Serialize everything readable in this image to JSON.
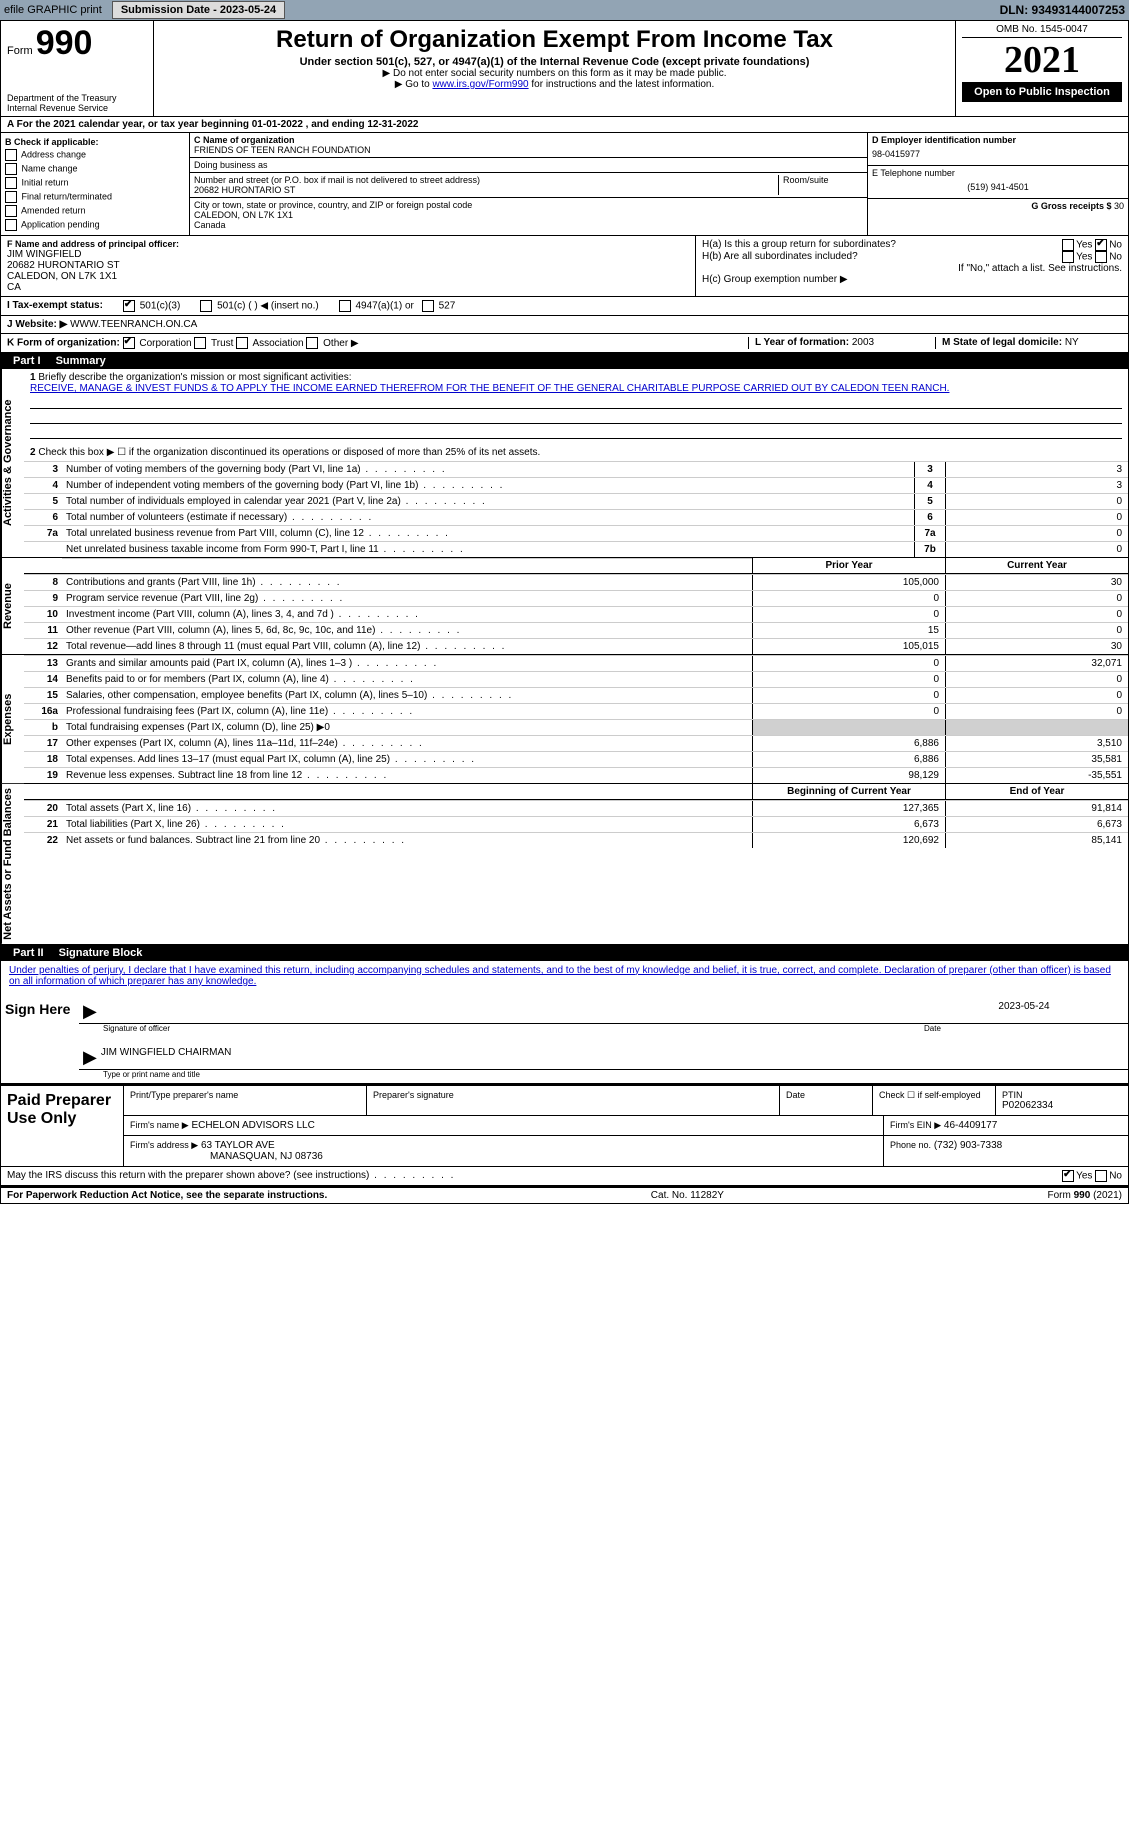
{
  "topbar": {
    "efile_label": "efile GRAPHIC print",
    "submission_label": "Submission Date - 2023-05-24",
    "dln": "DLN: 93493144007253"
  },
  "header": {
    "form_prefix": "Form",
    "form_number": "990",
    "title": "Return of Organization Exempt From Income Tax",
    "subtitle": "Under section 501(c), 527, or 4947(a)(1) of the Internal Revenue Code (except private foundations)",
    "note1": "▶ Do not enter social security numbers on this form as it may be made public.",
    "note2_pre": "▶ Go to ",
    "note2_link": "www.irs.gov/Form990",
    "note2_post": " for instructions and the latest information.",
    "dept": "Department of the Treasury",
    "irs": "Internal Revenue Service",
    "omb": "OMB No. 1545-0047",
    "tax_year": "2021",
    "open_public": "Open to Public Inspection"
  },
  "periodA": {
    "text_pre": "For the 2021 calendar year, or tax year beginning ",
    "begin": "01-01-2022",
    "mid": " , and ending ",
    "end": "12-31-2022"
  },
  "boxB": {
    "label": "B Check if applicable:",
    "items": [
      "Address change",
      "Name change",
      "Initial return",
      "Final return/terminated",
      "Amended return",
      "Application pending"
    ]
  },
  "boxC": {
    "name_label": "C Name of organization",
    "name": "FRIENDS OF TEEN RANCH FOUNDATION",
    "dba_label": "Doing business as",
    "dba": "",
    "street_label": "Number and street (or P.O. box if mail is not delivered to street address)",
    "room_label": "Room/suite",
    "street": "20682 HURONTARIO ST",
    "city_label": "City or town, state or province, country, and ZIP or foreign postal code",
    "city": "CALEDON, ON  L7K 1X1",
    "country": "Canada"
  },
  "boxD": {
    "label": "D Employer identification number",
    "value": "98-0415977"
  },
  "boxE": {
    "label": "E Telephone number",
    "value": "(519) 941-4501"
  },
  "boxG": {
    "label": "G Gross receipts $",
    "value": "30"
  },
  "boxF": {
    "label": "F  Name and address of principal officer:",
    "name": "JIM WINGFIELD",
    "addr1": "20682 HURONTARIO ST",
    "addr2": "CALEDON, ON  L7K 1X1",
    "addr3": "CA"
  },
  "boxH": {
    "a_label": "H(a)  Is this a group return for subordinates?",
    "b_label": "H(b)  Are all subordinates included?",
    "b_note": "If \"No,\" attach a list. See instructions.",
    "c_label": "H(c)  Group exemption number ▶",
    "yes": "Yes",
    "no": "No"
  },
  "boxI": {
    "label": "I    Tax-exempt status:",
    "opt1": "501(c)(3)",
    "opt2": "501(c) (  ) ◀ (insert no.)",
    "opt3": "4947(a)(1) or",
    "opt4": "527"
  },
  "boxJ": {
    "label": "J    Website: ▶",
    "value": "WWW.TEENRANCH.ON.CA"
  },
  "boxK": {
    "label": "K Form of organization:",
    "opts": [
      "Corporation",
      "Trust",
      "Association",
      "Other ▶"
    ]
  },
  "boxL": {
    "label": "L Year of formation:",
    "value": "2003"
  },
  "boxM": {
    "label": "M State of legal domicile:",
    "value": "NY"
  },
  "part1": {
    "label": "Part I",
    "title": "Summary",
    "line1_label": "Briefly describe the organization's mission or most significant activities:",
    "mission": "RECEIVE, MANAGE & INVEST FUNDS & TO APPLY THE INCOME EARNED THEREFROM FOR THE BENEFIT OF THE GENERAL CHARITABLE PURPOSE CARRIED OUT BY CALEDON TEEN RANCH.",
    "line2": "Check this box ▶ ☐  if the organization discontinued its operations or disposed of more than 25% of its net assets.",
    "gov_tab": "Activities & Governance",
    "rev_tab": "Revenue",
    "exp_tab": "Expenses",
    "net_tab": "Net Assets or Fund Balances",
    "rows_gov": [
      {
        "n": "3",
        "d": "Number of voting members of the governing body (Part VI, line 1a)",
        "box": "3",
        "v": "3"
      },
      {
        "n": "4",
        "d": "Number of independent voting members of the governing body (Part VI, line 1b)",
        "box": "4",
        "v": "3"
      },
      {
        "n": "5",
        "d": "Total number of individuals employed in calendar year 2021 (Part V, line 2a)",
        "box": "5",
        "v": "0"
      },
      {
        "n": "6",
        "d": "Total number of volunteers (estimate if necessary)",
        "box": "6",
        "v": "0"
      },
      {
        "n": "7a",
        "d": "Total unrelated business revenue from Part VIII, column (C), line 12",
        "box": "7a",
        "v": "0"
      },
      {
        "n": "",
        "d": "Net unrelated business taxable income from Form 990-T, Part I, line 11",
        "box": "7b",
        "v": "0"
      }
    ],
    "col_prior": "Prior Year",
    "col_current": "Current Year",
    "rows_rev": [
      {
        "n": "8",
        "d": "Contributions and grants (Part VIII, line 1h)",
        "p": "105,000",
        "c": "30"
      },
      {
        "n": "9",
        "d": "Program service revenue (Part VIII, line 2g)",
        "p": "0",
        "c": "0"
      },
      {
        "n": "10",
        "d": "Investment income (Part VIII, column (A), lines 3, 4, and 7d )",
        "p": "0",
        "c": "0"
      },
      {
        "n": "11",
        "d": "Other revenue (Part VIII, column (A), lines 5, 6d, 8c, 9c, 10c, and 11e)",
        "p": "15",
        "c": "0"
      },
      {
        "n": "12",
        "d": "Total revenue—add lines 8 through 11 (must equal Part VIII, column (A), line 12)",
        "p": "105,015",
        "c": "30"
      }
    ],
    "rows_exp": [
      {
        "n": "13",
        "d": "Grants and similar amounts paid (Part IX, column (A), lines 1–3 )",
        "p": "0",
        "c": "32,071"
      },
      {
        "n": "14",
        "d": "Benefits paid to or for members (Part IX, column (A), line 4)",
        "p": "0",
        "c": "0"
      },
      {
        "n": "15",
        "d": "Salaries, other compensation, employee benefits (Part IX, column (A), lines 5–10)",
        "p": "0",
        "c": "0"
      },
      {
        "n": "16a",
        "d": "Professional fundraising fees (Part IX, column (A), line 11e)",
        "p": "0",
        "c": "0"
      },
      {
        "n": "b",
        "d": "Total fundraising expenses (Part IX, column (D), line 25) ▶0",
        "p": "",
        "c": "",
        "gray": true
      },
      {
        "n": "17",
        "d": "Other expenses (Part IX, column (A), lines 11a–11d, 11f–24e)",
        "p": "6,886",
        "c": "3,510"
      },
      {
        "n": "18",
        "d": "Total expenses. Add lines 13–17 (must equal Part IX, column (A), line 25)",
        "p": "6,886",
        "c": "35,581"
      },
      {
        "n": "19",
        "d": "Revenue less expenses. Subtract line 18 from line 12",
        "p": "98,129",
        "c": "-35,551"
      }
    ],
    "col_begin": "Beginning of Current Year",
    "col_end": "End of Year",
    "rows_net": [
      {
        "n": "20",
        "d": "Total assets (Part X, line 16)",
        "p": "127,365",
        "c": "91,814"
      },
      {
        "n": "21",
        "d": "Total liabilities (Part X, line 26)",
        "p": "6,673",
        "c": "6,673"
      },
      {
        "n": "22",
        "d": "Net assets or fund balances. Subtract line 21 from line 20",
        "p": "120,692",
        "c": "85,141"
      }
    ]
  },
  "part2": {
    "label": "Part II",
    "title": "Signature Block",
    "declaration": "Under penalties of perjury, I declare that I have examined this return, including accompanying schedules and statements, and to the best of my knowledge and belief, it is true, correct, and complete. Declaration of preparer (other than officer) is based on all information of which preparer has any knowledge.",
    "sign_here": "Sign Here",
    "sig_officer": "Signature of officer",
    "date_label": "Date",
    "sig_date": "2023-05-24",
    "officer_name": "JIM WINGFIELD CHAIRMAN",
    "type_name": "Type or print name and title",
    "paid_label": "Paid Preparer Use Only",
    "prep_name_label": "Print/Type preparer's name",
    "prep_sig_label": "Preparer's signature",
    "prep_date_label": "Date",
    "prep_check": "Check ☐ if self-employed",
    "ptin_label": "PTIN",
    "ptin": "P02062334",
    "firm_name_label": "Firm's name    ▶",
    "firm_name": "ECHELON ADVISORS LLC",
    "firm_ein_label": "Firm's EIN ▶",
    "firm_ein": "46-4409177",
    "firm_addr_label": "Firm's address ▶",
    "firm_addr1": "63 TAYLOR AVE",
    "firm_addr2": "MANASQUAN, NJ  08736",
    "phone_label": "Phone no.",
    "phone": "(732) 903-7338",
    "may_irs": "May the IRS discuss this return with the preparer shown above? (see instructions)"
  },
  "footer": {
    "pra": "For Paperwork Reduction Act Notice, see the separate instructions.",
    "cat": "Cat. No. 11282Y",
    "form": "Form 990 (2021)"
  }
}
